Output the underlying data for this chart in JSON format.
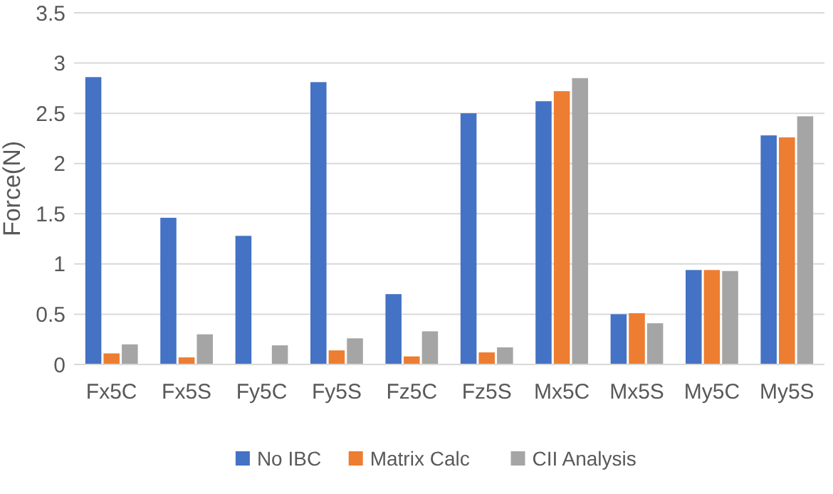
{
  "chart_data": {
    "type": "bar",
    "ylabel": "Force(N)",
    "categories": [
      "Fx5C",
      "Fx5S",
      "Fy5C",
      "Fy5S",
      "Fz5C",
      "Fz5S",
      "Mx5C",
      "Mx5S",
      "My5C",
      "My5S"
    ],
    "series": [
      {
        "name": "No IBC",
        "color": "#4472c4",
        "values": [
          2.86,
          1.46,
          1.28,
          2.81,
          0.7,
          2.5,
          2.62,
          0.5,
          0.94,
          2.28
        ]
      },
      {
        "name": "Matrix Calc",
        "color": "#ed7d31",
        "values": [
          0.11,
          0.07,
          0,
          0.14,
          0.08,
          0.12,
          2.72,
          0.51,
          0.94,
          2.26
        ]
      },
      {
        "name": "CII Analysis",
        "color": "#a5a5a5",
        "values": [
          0.2,
          0.3,
          0.19,
          0.26,
          0.33,
          0.17,
          2.85,
          0.41,
          0.93,
          2.47
        ]
      }
    ],
    "ylim": [
      0,
      3.5
    ],
    "yticks": [
      0,
      {
        "value": 0.5,
        "label": "0.5"
      },
      1,
      {
        "value": 1.5,
        "label": "1.5"
      },
      2,
      {
        "value": 2.5,
        "label": "2.5"
      },
      3,
      {
        "value": 3.5,
        "label": "3.5"
      }
    ],
    "grid": "y",
    "legend": "bottom"
  }
}
